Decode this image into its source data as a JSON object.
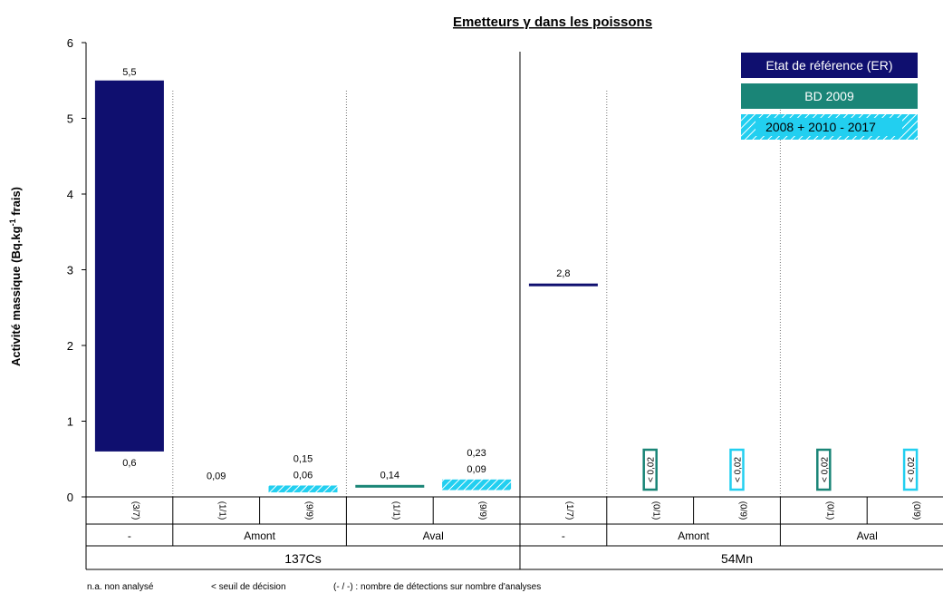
{
  "chart_data": {
    "type": "bar",
    "title": "Emetteurs γ dans les poissons",
    "ylabel": "Activité massique (Bq.kg-1 frais)",
    "ylabel_main": "Activité massique (Bq.kg",
    "ylabel_sup": "-1",
    "ylabel_end": " frais)",
    "ylim": [
      0,
      6
    ],
    "yticks": [
      "0",
      "1",
      "2",
      "3",
      "4",
      "5",
      "6"
    ],
    "legend_position": "top-right",
    "series": [
      {
        "name": "Etat de référence (ER)",
        "color": "#0f0f6f",
        "pattern": "solid"
      },
      {
        "name": "BD 2009",
        "color": "#1a8577",
        "pattern": "solid"
      },
      {
        "name": "2008 + 2010 - 2017",
        "color": "#22cff0",
        "pattern": "hatched"
      }
    ],
    "elements": [
      {
        "name": "137Cs",
        "groups": [
          {
            "label": "-",
            "slots": [
              {
                "series": "Etat de référence (ER)",
                "count": "(3/7)",
                "min": 0.6,
                "max": 5.5,
                "label_min": "0,6",
                "label_max": "5,5"
              }
            ]
          },
          {
            "label": "Amont",
            "slots": [
              {
                "series": "BD 2009",
                "count": "(1/1)",
                "value": 0.09,
                "label": "0,09",
                "show_mark": false
              },
              {
                "series": "2008 + 2010 - 2017",
                "count": "(9/9)",
                "min": 0.06,
                "max": 0.15,
                "label_min": "0,06",
                "label_max": "0,15"
              }
            ]
          },
          {
            "label": "Aval",
            "slots": [
              {
                "series": "BD 2009",
                "count": "(1/1)",
                "value": 0.14,
                "label": "0,14"
              },
              {
                "series": "2008 + 2010 - 2017",
                "count": "(9/9)",
                "min": 0.09,
                "max": 0.23,
                "label_min": "0,09",
                "label_max": "0,23"
              }
            ]
          }
        ]
      },
      {
        "name": "54Mn",
        "groups": [
          {
            "label": "-",
            "slots": [
              {
                "series": "Etat de référence (ER)",
                "count": "(1/7)",
                "value": 2.8,
                "label": "2,8"
              }
            ]
          },
          {
            "label": "Amont",
            "slots": [
              {
                "series": "BD 2009",
                "count": "(0/1)",
                "below": "< 0,02"
              },
              {
                "series": "2008 + 2010 - 2017",
                "count": "(0/9)",
                "below": "< 0,02"
              }
            ]
          },
          {
            "label": "Aval",
            "slots": [
              {
                "series": "BD 2009",
                "count": "(0/1)",
                "below": "< 0,02"
              },
              {
                "series": "2008 + 2010 - 2017",
                "count": "(0/9)",
                "below": "< 0,02"
              }
            ]
          }
        ]
      }
    ],
    "footnotes": [
      "n.a. non analysé",
      "< seuil de décision",
      "(- / -) : nombre de détections sur nombre d'analyses"
    ]
  }
}
